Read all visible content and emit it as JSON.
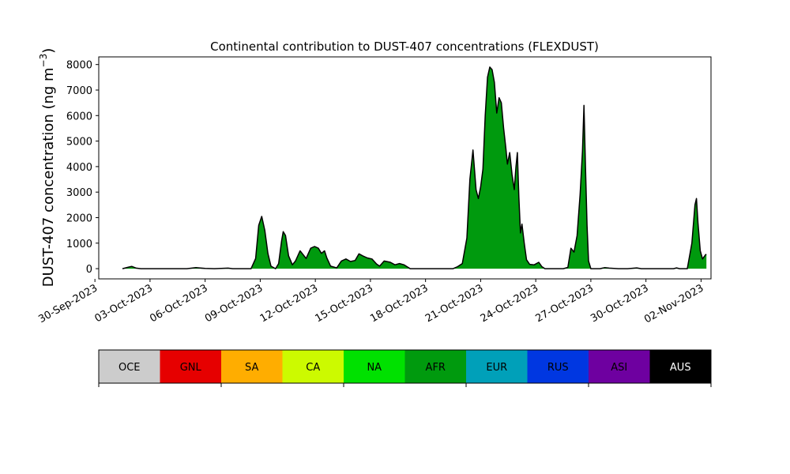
{
  "chart_data": {
    "type": "area",
    "title": "Continental contribution to DUST-407 concentrations (FLEXDUST)",
    "ylabel": "DUST-407 concentration (ng m",
    "ylabel_unit_sup": "−3",
    "ylabel_close": ")",
    "xlabel": "",
    "x_start": "2023-09-30",
    "xlim": [
      "2023-09-30T05:00",
      "2023-11-02T13:00"
    ],
    "ylim": [
      -400,
      8300
    ],
    "yticks": [
      0,
      1000,
      2000,
      3000,
      4000,
      5000,
      6000,
      7000,
      8000
    ],
    "ytick_labels": [
      "0",
      "1000",
      "2000",
      "3000",
      "4000",
      "5000",
      "6000",
      "7000",
      "8000"
    ],
    "xticks": [
      "2023-09-30",
      "2023-10-03",
      "2023-10-06",
      "2023-10-09",
      "2023-10-12",
      "2023-10-15",
      "2023-10-18",
      "2023-10-21",
      "2023-10-24",
      "2023-10-27",
      "2023-10-30",
      "2023-11-02"
    ],
    "xtick_labels": [
      "30-Sep-2023",
      "03-Oct-2023",
      "06-Oct-2023",
      "09-Oct-2023",
      "12-Oct-2023",
      "15-Oct-2023",
      "18-Oct-2023",
      "21-Oct-2023",
      "24-Oct-2023",
      "27-Oct-2023",
      "30-Oct-2023",
      "02-Nov-2023"
    ],
    "grid": false,
    "series": [
      {
        "name": "AFR",
        "color": "#009a0e",
        "points": [
          [
            "2023-10-01T12:00",
            0
          ],
          [
            "2023-10-01T20:00",
            60
          ],
          [
            "2023-10-02T00:00",
            90
          ],
          [
            "2023-10-02T06:00",
            20
          ],
          [
            "2023-10-02T12:00",
            0
          ],
          [
            "2023-10-05T00:00",
            0
          ],
          [
            "2023-10-05T12:00",
            40
          ],
          [
            "2023-10-06T00:00",
            10
          ],
          [
            "2023-10-06T12:00",
            0
          ],
          [
            "2023-10-07T06:00",
            20
          ],
          [
            "2023-10-07T12:00",
            0
          ],
          [
            "2023-10-08T12:00",
            0
          ],
          [
            "2023-10-08T18:00",
            400
          ],
          [
            "2023-10-08T22:00",
            1700
          ],
          [
            "2023-10-09T02:00",
            2050
          ],
          [
            "2023-10-09T06:00",
            1500
          ],
          [
            "2023-10-09T10:00",
            600
          ],
          [
            "2023-10-09T14:00",
            100
          ],
          [
            "2023-10-09T20:00",
            0
          ],
          [
            "2023-10-10T00:00",
            200
          ],
          [
            "2023-10-10T04:00",
            1100
          ],
          [
            "2023-10-10T06:00",
            1450
          ],
          [
            "2023-10-10T09:00",
            1300
          ],
          [
            "2023-10-10T13:00",
            500
          ],
          [
            "2023-10-10T18:00",
            150
          ],
          [
            "2023-10-10T22:00",
            300
          ],
          [
            "2023-10-11T04:00",
            700
          ],
          [
            "2023-10-11T08:00",
            550
          ],
          [
            "2023-10-11T12:00",
            400
          ],
          [
            "2023-10-11T18:00",
            800
          ],
          [
            "2023-10-11T23:00",
            870
          ],
          [
            "2023-10-12T04:00",
            800
          ],
          [
            "2023-10-12T08:00",
            600
          ],
          [
            "2023-10-12T12:00",
            700
          ],
          [
            "2023-10-12T15:00",
            420
          ],
          [
            "2023-10-12T20:00",
            100
          ],
          [
            "2023-10-13T04:00",
            30
          ],
          [
            "2023-10-13T10:00",
            300
          ],
          [
            "2023-10-13T16:00",
            380
          ],
          [
            "2023-10-13T22:00",
            280
          ],
          [
            "2023-10-14T04:00",
            320
          ],
          [
            "2023-10-14T09:00",
            580
          ],
          [
            "2023-10-14T14:00",
            500
          ],
          [
            "2023-10-14T20:00",
            420
          ],
          [
            "2023-10-15T02:00",
            380
          ],
          [
            "2023-10-15T08:00",
            180
          ],
          [
            "2023-10-15T12:00",
            100
          ],
          [
            "2023-10-15T18:00",
            300
          ],
          [
            "2023-10-16T02:00",
            250
          ],
          [
            "2023-10-16T08:00",
            150
          ],
          [
            "2023-10-16T14:00",
            200
          ],
          [
            "2023-10-16T20:00",
            150
          ],
          [
            "2023-10-17T04:00",
            0
          ],
          [
            "2023-10-19T12:00",
            0
          ],
          [
            "2023-10-19T18:00",
            80
          ],
          [
            "2023-10-20T00:00",
            200
          ],
          [
            "2023-10-20T06:00",
            1200
          ],
          [
            "2023-10-20T10:00",
            3500
          ],
          [
            "2023-10-20T14:00",
            4650
          ],
          [
            "2023-10-20T18:00",
            3100
          ],
          [
            "2023-10-20T21:00",
            2750
          ],
          [
            "2023-10-21T00:00",
            3200
          ],
          [
            "2023-10-21T03:00",
            3900
          ],
          [
            "2023-10-21T06:00",
            6000
          ],
          [
            "2023-10-21T09:00",
            7500
          ],
          [
            "2023-10-21T12:00",
            7900
          ],
          [
            "2023-10-21T15:00",
            7800
          ],
          [
            "2023-10-21T18:00",
            7300
          ],
          [
            "2023-10-21T21:00",
            6100
          ],
          [
            "2023-10-22T00:00",
            6700
          ],
          [
            "2023-10-22T03:00",
            6500
          ],
          [
            "2023-10-22T06:00",
            5500
          ],
          [
            "2023-10-22T09:00",
            4700
          ],
          [
            "2023-10-22T11:00",
            4100
          ],
          [
            "2023-10-22T14:00",
            4550
          ],
          [
            "2023-10-22T17:00",
            3700
          ],
          [
            "2023-10-22T20:00",
            3100
          ],
          [
            "2023-10-22T22:00",
            3950
          ],
          [
            "2023-10-23T00:00",
            4550
          ],
          [
            "2023-10-23T02:00",
            2800
          ],
          [
            "2023-10-23T04:00",
            1400
          ],
          [
            "2023-10-23T06:00",
            1750
          ],
          [
            "2023-10-23T09:00",
            1000
          ],
          [
            "2023-10-23T12:00",
            350
          ],
          [
            "2023-10-23T16:00",
            170
          ],
          [
            "2023-10-23T22:00",
            150
          ],
          [
            "2023-10-24T04:00",
            250
          ],
          [
            "2023-10-24T08:00",
            80
          ],
          [
            "2023-10-24T12:00",
            0
          ],
          [
            "2023-10-25T12:00",
            0
          ],
          [
            "2023-10-25T18:00",
            50
          ],
          [
            "2023-10-25T22:00",
            800
          ],
          [
            "2023-10-26T02:00",
            650
          ],
          [
            "2023-10-26T06:00",
            1300
          ],
          [
            "2023-10-26T10:00",
            2900
          ],
          [
            "2023-10-26T13:00",
            4600
          ],
          [
            "2023-10-26T15:00",
            6400
          ],
          [
            "2023-10-26T17:00",
            4000
          ],
          [
            "2023-10-26T19:00",
            1700
          ],
          [
            "2023-10-26T21:00",
            300
          ],
          [
            "2023-10-27T00:00",
            0
          ],
          [
            "2023-10-27T12:00",
            0
          ],
          [
            "2023-10-27T18:00",
            40
          ],
          [
            "2023-10-28T00:00",
            20
          ],
          [
            "2023-10-28T12:00",
            0
          ],
          [
            "2023-10-29T00:00",
            0
          ],
          [
            "2023-10-29T12:00",
            30
          ],
          [
            "2023-10-29T18:00",
            0
          ],
          [
            "2023-10-31T12:00",
            0
          ],
          [
            "2023-10-31T16:00",
            30
          ],
          [
            "2023-10-31T20:00",
            0
          ],
          [
            "2023-11-01T06:00",
            0
          ],
          [
            "2023-11-01T12:00",
            1000
          ],
          [
            "2023-11-01T16:00",
            2500
          ],
          [
            "2023-11-01T18:00",
            2750
          ],
          [
            "2023-11-01T20:00",
            1800
          ],
          [
            "2023-11-01T23:00",
            700
          ],
          [
            "2023-11-02T02:00",
            380
          ],
          [
            "2023-11-02T06:00",
            550
          ],
          [
            "2023-11-02T07:00",
            560
          ]
        ]
      }
    ],
    "legend": {
      "placement": "bottom-colorbar",
      "entries": [
        {
          "label": "OCE",
          "color": "#cccccc",
          "text_color": "#000000"
        },
        {
          "label": "GNL",
          "color": "#e60000",
          "text_color": "#000000"
        },
        {
          "label": "SA",
          "color": "#ffad00",
          "text_color": "#000000"
        },
        {
          "label": "CA",
          "color": "#ccfa00",
          "text_color": "#000000"
        },
        {
          "label": "NA",
          "color": "#00e100",
          "text_color": "#000000"
        },
        {
          "label": "AFR",
          "color": "#009a0e",
          "text_color": "#000000"
        },
        {
          "label": "EUR",
          "color": "#00a0b9",
          "text_color": "#000000"
        },
        {
          "label": "RUS",
          "color": "#0037e1",
          "text_color": "#000000"
        },
        {
          "label": "ASI",
          "color": "#6e00a0",
          "text_color": "#000000"
        },
        {
          "label": "AUS",
          "color": "#000000",
          "text_color": "#ffffff"
        }
      ]
    }
  }
}
